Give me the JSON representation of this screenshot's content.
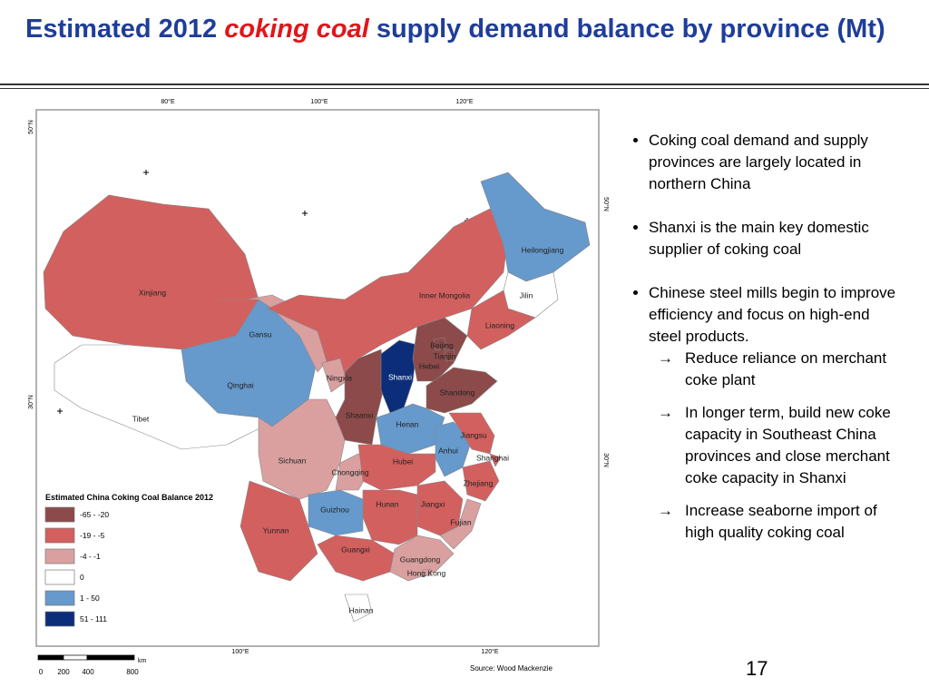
{
  "header": {
    "title_start": "Estimated 2012",
    "title_highlight": "coking coal",
    "title_end": "supply demand balance by province (Mt)"
  },
  "map": {
    "graticule": {
      "top": [
        "80°E",
        "100°E",
        "120°E"
      ],
      "bottom": [
        "100°E",
        "120°E"
      ],
      "left": [
        "50°N",
        "30°N"
      ],
      "right": [
        "50°N",
        "30°N"
      ]
    },
    "provinces": [
      {
        "label": "Xinjiang",
        "color": "#d2605f"
      },
      {
        "label": "Tibet",
        "color": "#ffffff"
      },
      {
        "label": "Qinghai",
        "color": "#6699cc"
      },
      {
        "label": "Gansu",
        "color": "#daa0a0"
      },
      {
        "label": "Inner Mongolia",
        "color": "#d2605f"
      },
      {
        "label": "Heilongjiang",
        "color": "#6699cc"
      },
      {
        "label": "Jilin",
        "color": "#ffffff"
      },
      {
        "label": "Liaoning",
        "color": "#d2605f"
      },
      {
        "label": "Ningxia",
        "color": "#daa0a0"
      },
      {
        "label": "Shaanxi",
        "color": "#8c4a4a"
      },
      {
        "label": "Shanxi",
        "color": "#0c2e7a"
      },
      {
        "label": "Hebei",
        "color": "#8c4a4a"
      },
      {
        "label": "Beijing",
        "color": "#8c4a4a"
      },
      {
        "label": "Tianjin",
        "color": "#8c4a4a"
      },
      {
        "label": "Shandong",
        "color": "#8c4a4a"
      },
      {
        "label": "Henan",
        "color": "#6699cc"
      },
      {
        "label": "Sichuan",
        "color": "#daa0a0"
      },
      {
        "label": "Chongqing",
        "color": "#daa0a0"
      },
      {
        "label": "Hubei",
        "color": "#d2605f"
      },
      {
        "label": "Anhui",
        "color": "#6699cc"
      },
      {
        "label": "Jiangsu",
        "color": "#d2605f"
      },
      {
        "label": "Shanghai",
        "color": "#d2605f"
      },
      {
        "label": "Zhejiang",
        "color": "#d2605f"
      },
      {
        "label": "Jiangxi",
        "color": "#d2605f"
      },
      {
        "label": "Hunan",
        "color": "#d2605f"
      },
      {
        "label": "Guizhou",
        "color": "#6699cc"
      },
      {
        "label": "Yunnan",
        "color": "#d2605f"
      },
      {
        "label": "Guangxi",
        "color": "#d2605f"
      },
      {
        "label": "Guangdong",
        "color": "#daa0a0"
      },
      {
        "label": "Fujian",
        "color": "#daa0a0"
      },
      {
        "label": "Hainan",
        "color": "#ffffff"
      },
      {
        "label": "Hong Kong",
        "color": "#daa0a0"
      }
    ],
    "legend": {
      "title": "Estimated China Coking Coal Balance 2012",
      "items": [
        {
          "label": "-65 - -20",
          "color": "#8c4a4a"
        },
        {
          "label": "-19 - -5",
          "color": "#d2605f"
        },
        {
          "label": "-4 - -1",
          "color": "#daa0a0"
        },
        {
          "label": "0",
          "color": "#ffffff"
        },
        {
          "label": "1 - 50",
          "color": "#6699cc"
        },
        {
          "label": "51 - 111",
          "color": "#0c2e7a"
        }
      ]
    },
    "scale": {
      "labels": [
        "0",
        "200",
        "400",
        "800"
      ],
      "unit": "km"
    },
    "source": "Source: Wood Mackenzie"
  },
  "bullets": {
    "sub_marker": "→",
    "items": [
      {
        "text": "Coking coal demand and supply provinces are largely located in northern China",
        "sub": []
      },
      {
        "text": "Shanxi is the main key domestic supplier of coking coal",
        "sub": []
      },
      {
        "text": "Chinese steel mills begin to improve efficiency and focus on high-end steel products.",
        "sub": [
          "Reduce reliance on merchant coke plant",
          "In longer term, build new coke capacity in Southeast China provinces and close merchant coke capacity in Shanxi",
          "Increase seaborne import of high quality coking coal"
        ]
      }
    ]
  },
  "footer": {
    "page_number": "17"
  }
}
